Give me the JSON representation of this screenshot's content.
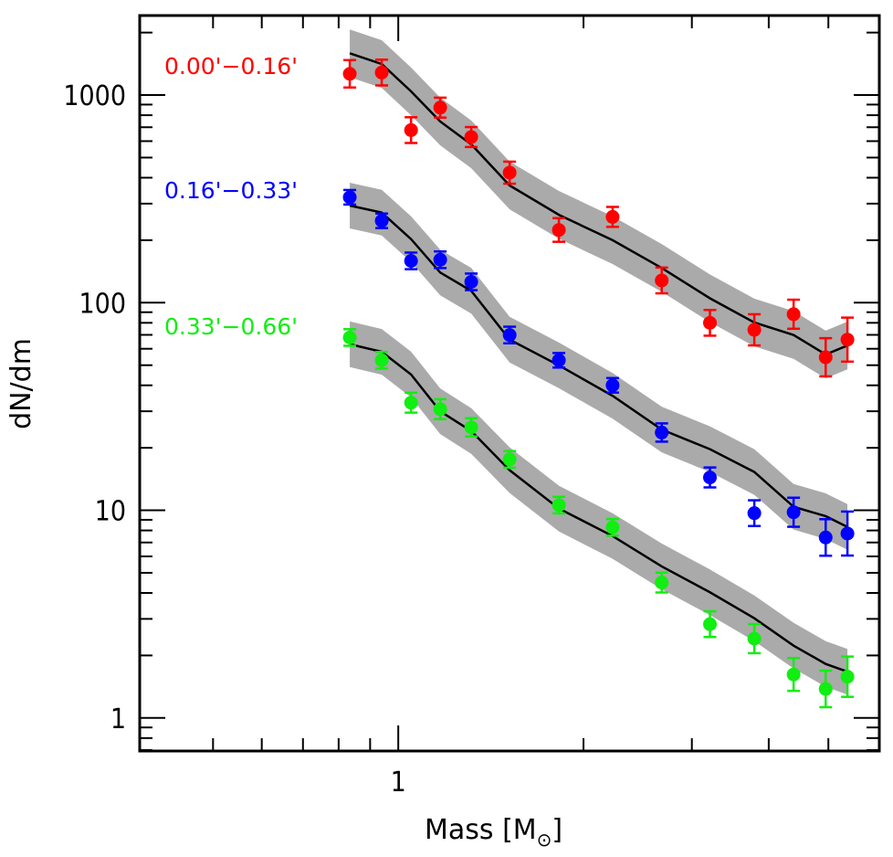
{
  "chart_data": {
    "type": "scatter",
    "title": "",
    "xlabel": "Mass [M",
    "xlabel_sub": "⊙",
    "xlabel_end": "]",
    "ylabel": "dN/dm",
    "xscale": "log",
    "yscale": "log",
    "xlim": [
      0.38,
      6.05
    ],
    "ylim": [
      0.693,
      2416
    ],
    "grid": false,
    "legend_placement": "left, beside each series",
    "x_ticks": [
      {
        "value": 1,
        "label": "1"
      }
    ],
    "x_minor_ticks": [
      0.5,
      0.6,
      0.7,
      0.8,
      0.9,
      2,
      3,
      4,
      5
    ],
    "y_ticks": [
      {
        "value": 1,
        "label": "1"
      },
      {
        "value": 10,
        "label": "10"
      },
      {
        "value": 100,
        "label": "100"
      },
      {
        "value": 1000,
        "label": "1000"
      }
    ],
    "band_color": "#aaaaaa",
    "model_color": "#000000",
    "series": [
      {
        "name": "0.00'−0.16'",
        "color": "#ff0000",
        "x": [
          0.834,
          0.94,
          1.049,
          1.17,
          1.314,
          1.517,
          1.824,
          2.23,
          2.68,
          3.21,
          3.79,
          4.39,
          4.95,
          5.37
        ],
        "y": [
          1266,
          1284,
          678,
          870,
          628,
          423,
          224,
          259,
          128,
          80,
          74,
          88,
          54.6,
          66.4
        ],
        "err_dex": [
          0.066,
          0.062,
          0.062,
          0.048,
          0.048,
          0.053,
          0.057,
          0.048,
          0.062,
          0.062,
          0.075,
          0.07,
          0.092,
          0.106
        ],
        "model": [
          1589,
          1411,
          1042,
          746,
          579,
          367,
          265,
          200,
          147,
          105,
          80.3,
          69.9,
          56.3,
          62.2
        ],
        "band_dex": 0.115
      },
      {
        "name": "0.16'−0.33'",
        "color": "#0000ff",
        "x": [
          0.834,
          0.94,
          1.049,
          1.17,
          1.314,
          1.517,
          1.824,
          2.23,
          2.68,
          3.21,
          3.79,
          4.39,
          4.95,
          5.37
        ],
        "y": [
          322,
          248,
          159,
          161,
          126,
          69.9,
          52.8,
          40.0,
          23.7,
          14.4,
          9.69,
          9.79,
          7.4,
          7.73
        ],
        "err_dex": [
          0.035,
          0.035,
          0.04,
          0.04,
          0.04,
          0.04,
          0.035,
          0.035,
          0.044,
          0.048,
          0.062,
          0.07,
          0.088,
          0.106
        ],
        "model": [
          293.6,
          271.6,
          202.4,
          139.7,
          114.1,
          66.4,
          49.9,
          35.6,
          24.5,
          19.7,
          15.3,
          10.4,
          9.37,
          8.32
        ],
        "band_dex": 0.11
      },
      {
        "name": "0.33'−0.66'",
        "color": "#11ee11",
        "x": [
          0.834,
          0.94,
          1.049,
          1.17,
          1.314,
          1.517,
          1.824,
          2.23,
          2.68,
          3.21,
          3.79,
          4.39,
          4.95,
          5.37
        ],
        "y": [
          68.0,
          52.8,
          33.0,
          30.7,
          25.1,
          17.6,
          10.6,
          8.28,
          4.49,
          2.83,
          2.41,
          1.62,
          1.38,
          1.58
        ],
        "err_dex": [
          0.04,
          0.04,
          0.048,
          0.048,
          0.044,
          0.04,
          0.04,
          0.04,
          0.048,
          0.062,
          0.07,
          0.079,
          0.088,
          0.097
        ],
        "model": [
          63.1,
          58.0,
          45.1,
          30.0,
          24.1,
          15.6,
          10.2,
          7.52,
          5.37,
          4.03,
          3.02,
          2.23,
          1.82,
          1.67
        ],
        "band_dex": 0.11
      }
    ]
  }
}
